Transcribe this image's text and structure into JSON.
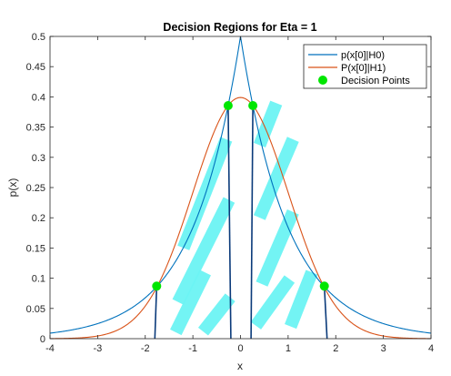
{
  "chart_data": {
    "type": "line",
    "title": "Decision Regions for Eta = 1",
    "xlabel": "x",
    "ylabel": "p(x)",
    "xlim": [
      -4,
      4
    ],
    "ylim": [
      0,
      0.5
    ],
    "xticks": [
      "-4",
      "-3",
      "-2",
      "-1",
      "0",
      "1",
      "2",
      "3",
      "4"
    ],
    "yticks": [
      "0",
      "0.05",
      "0.1",
      "0.15",
      "0.2",
      "0.25",
      "0.3",
      "0.35",
      "0.4",
      "0.45",
      "0.5"
    ],
    "grid": false,
    "legend_position": "top-right",
    "series": [
      {
        "name": "p(x[0]|H0)",
        "color": "#0072BD",
        "x": [
          -4,
          -3.5,
          -3,
          -2.5,
          -2,
          -1.75,
          -1.5,
          -1,
          -0.5,
          -0.3,
          0,
          0.3,
          0.5,
          1,
          1.5,
          1.75,
          2,
          2.5,
          3,
          3.5,
          4
        ],
        "y": [
          0.0092,
          0.0151,
          0.0249,
          0.041,
          0.0677,
          0.0869,
          0.1116,
          0.1839,
          0.3033,
          0.3704,
          0.5,
          0.3704,
          0.3033,
          0.1839,
          0.1116,
          0.0869,
          0.0677,
          0.041,
          0.0249,
          0.0151,
          0.0092
        ]
      },
      {
        "name": "P(x[0]|H1)",
        "color": "#D95319",
        "x": [
          -4,
          -3.5,
          -3,
          -2.5,
          -2,
          -1.75,
          -1.5,
          -1,
          -0.5,
          -0.3,
          0,
          0.3,
          0.5,
          1,
          1.5,
          1.75,
          2,
          2.5,
          3,
          3.5,
          4
        ],
        "y": [
          0.0001,
          0.0009,
          0.0044,
          0.0175,
          0.054,
          0.0863,
          0.1295,
          0.242,
          0.3521,
          0.3814,
          0.3989,
          0.3814,
          0.3521,
          0.242,
          0.1295,
          0.0863,
          0.054,
          0.0175,
          0.0044,
          0.0009,
          0.0001
        ]
      },
      {
        "name": "Decision Points",
        "type": "scatter",
        "color": "#00E600",
        "x": [
          -1.76,
          -0.26,
          0.26,
          1.76
        ],
        "y": [
          0.0869,
          0.3855,
          0.3855,
          0.0869
        ]
      }
    ],
    "hatch_color": "#6CF4F4",
    "hatch_regions": [
      [
        -1.76,
        -0.26
      ],
      [
        0.26,
        1.76
      ]
    ]
  }
}
